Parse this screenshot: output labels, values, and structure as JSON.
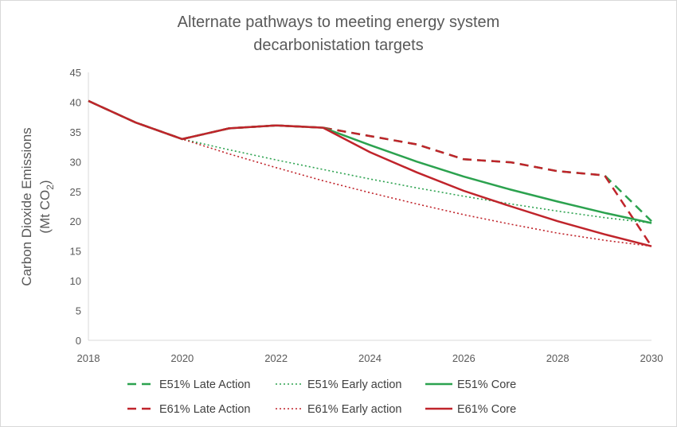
{
  "chart_data": {
    "type": "line",
    "title_lines": [
      "Alternate pathways to meeting energy system",
      "decarbonistation targets"
    ],
    "ylabel_lines": [
      "Carbon Dioxide Emissions",
      "(Mt CO",
      "2",
      ")"
    ],
    "xlabel": "",
    "xlim": [
      2018,
      2030
    ],
    "ylim": [
      0,
      45
    ],
    "x_ticks": [
      2018,
      2020,
      2022,
      2024,
      2026,
      2028,
      2030
    ],
    "y_ticks": [
      0,
      5,
      10,
      15,
      20,
      25,
      30,
      35,
      40,
      45
    ],
    "grid": false,
    "legend_position": "bottom",
    "series": [
      {
        "name": "E51% Late Action",
        "color": "#2ca24f",
        "style": "dashed",
        "x": [
          2018,
          2019,
          2020,
          2021,
          2022,
          2023,
          2024,
          2025,
          2026,
          2027,
          2028,
          2029,
          2030
        ],
        "y": [
          40.2,
          36.6,
          33.8,
          35.6,
          36.1,
          35.7,
          34.3,
          32.9,
          30.4,
          29.9,
          28.4,
          27.7,
          20.0
        ]
      },
      {
        "name": "E51% Early action",
        "color": "#2ca24f",
        "style": "dotted",
        "x": [
          2018,
          2019,
          2020,
          2021,
          2022,
          2023,
          2024,
          2025,
          2026,
          2027,
          2028,
          2029,
          2030
        ],
        "y": [
          40.2,
          36.6,
          33.8,
          32.0,
          30.3,
          28.7,
          27.1,
          25.6,
          24.2,
          22.9,
          21.7,
          20.6,
          19.7
        ]
      },
      {
        "name": "E51% Core",
        "color": "#2ca24f",
        "style": "solid",
        "x": [
          2018,
          2019,
          2020,
          2021,
          2022,
          2023,
          2024,
          2025,
          2026,
          2027,
          2028,
          2029,
          2030
        ],
        "y": [
          40.2,
          36.6,
          33.8,
          35.6,
          36.1,
          35.7,
          32.8,
          30.0,
          27.5,
          25.3,
          23.3,
          21.4,
          19.7
        ]
      },
      {
        "name": "E61% Late Action",
        "color": "#c0242b",
        "style": "dashed",
        "x": [
          2018,
          2019,
          2020,
          2021,
          2022,
          2023,
          2024,
          2025,
          2026,
          2027,
          2028,
          2029,
          2030
        ],
        "y": [
          40.2,
          36.6,
          33.8,
          35.6,
          36.1,
          35.7,
          34.3,
          32.9,
          30.4,
          29.9,
          28.4,
          27.7,
          15.8
        ]
      },
      {
        "name": "E61% Early action",
        "color": "#c0242b",
        "style": "dotted",
        "x": [
          2018,
          2019,
          2020,
          2021,
          2022,
          2023,
          2024,
          2025,
          2026,
          2027,
          2028,
          2029,
          2030
        ],
        "y": [
          40.2,
          36.6,
          33.8,
          31.3,
          29.0,
          26.8,
          24.8,
          22.9,
          21.1,
          19.5,
          18.0,
          16.8,
          15.8
        ]
      },
      {
        "name": "E61% Core",
        "color": "#c0242b",
        "style": "solid",
        "x": [
          2018,
          2019,
          2020,
          2021,
          2022,
          2023,
          2024,
          2025,
          2026,
          2027,
          2028,
          2029,
          2030
        ],
        "y": [
          40.2,
          36.6,
          33.8,
          35.6,
          36.1,
          35.7,
          31.6,
          28.2,
          25.1,
          22.5,
          20.0,
          17.8,
          15.8
        ]
      }
    ]
  }
}
